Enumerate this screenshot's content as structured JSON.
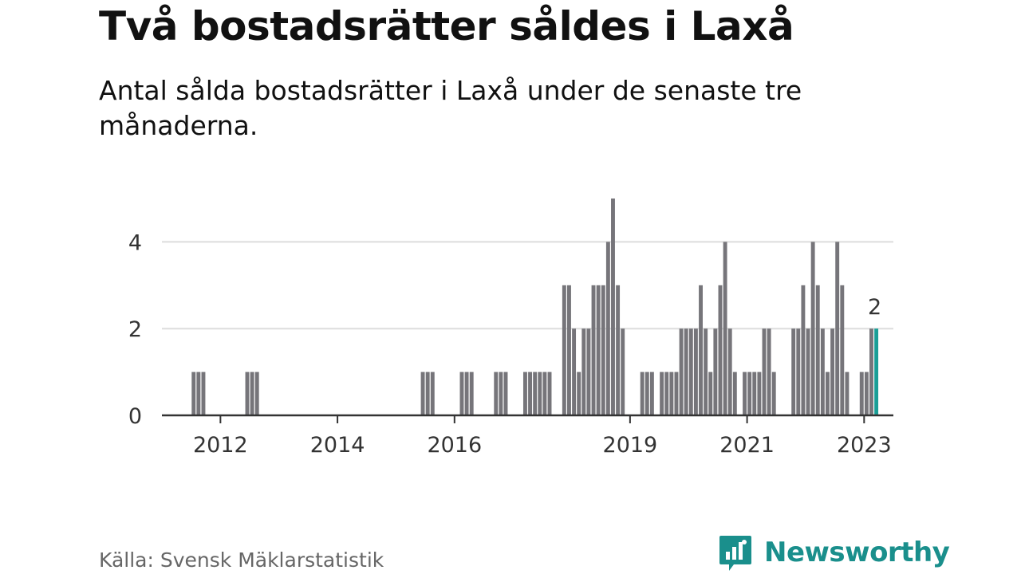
{
  "title": "Två bostadsrätter såldes i Laxå",
  "subtitle": "Antal sålda bostadsrätter i Laxå under de senaste tre månaderna.",
  "source": "Källa: Svensk Mäklarstatistik",
  "brand": {
    "name": "Newsworthy",
    "color": "#1a8f8c",
    "icon": "chart-bubble-icon"
  },
  "colors": {
    "bar": "#76757a",
    "highlight": "#1a9e96",
    "grid": "#dddddd",
    "baseline": "#333333"
  },
  "chart_data": {
    "type": "bar",
    "title": "Två bostadsrätter såldes i Laxå",
    "subtitle": "Antal sålda bostadsrätter i Laxå under de senaste tre månaderna.",
    "x_start": "2011-01",
    "x_end": "2023-06",
    "xticks": [
      {
        "label": "2012",
        "date": "2012-01"
      },
      {
        "label": "2014",
        "date": "2014-01"
      },
      {
        "label": "2016",
        "date": "2016-01"
      },
      {
        "label": "2019",
        "date": "2019-01"
      },
      {
        "label": "2021",
        "date": "2021-01"
      },
      {
        "label": "2023",
        "date": "2023-01"
      }
    ],
    "yticks": [
      0,
      2,
      4
    ],
    "ylim": [
      0,
      5
    ],
    "grid": true,
    "annotation": {
      "date": "2023-03",
      "text": "2"
    },
    "series": [
      {
        "points": [
          [
            "2011-07",
            1
          ],
          [
            "2011-08",
            1
          ],
          [
            "2011-09",
            1
          ],
          [
            "2012-06",
            1
          ],
          [
            "2012-07",
            1
          ],
          [
            "2012-08",
            1
          ],
          [
            "2015-06",
            1
          ],
          [
            "2015-07",
            1
          ],
          [
            "2015-08",
            1
          ],
          [
            "2016-02",
            1
          ],
          [
            "2016-03",
            1
          ],
          [
            "2016-04",
            1
          ],
          [
            "2016-09",
            1
          ],
          [
            "2016-10",
            1
          ],
          [
            "2016-11",
            1
          ],
          [
            "2017-03",
            1
          ],
          [
            "2017-04",
            1
          ],
          [
            "2017-05",
            1
          ],
          [
            "2017-06",
            1
          ],
          [
            "2017-07",
            1
          ],
          [
            "2017-08",
            1
          ],
          [
            "2017-11",
            3
          ],
          [
            "2017-12",
            3
          ],
          [
            "2018-01",
            2
          ],
          [
            "2018-02",
            1
          ],
          [
            "2018-03",
            2
          ],
          [
            "2018-04",
            2
          ],
          [
            "2018-05",
            3
          ],
          [
            "2018-06",
            3
          ],
          [
            "2018-07",
            3
          ],
          [
            "2018-08",
            4
          ],
          [
            "2018-09",
            5
          ],
          [
            "2018-10",
            3
          ],
          [
            "2018-11",
            2
          ],
          [
            "2019-03",
            1
          ],
          [
            "2019-04",
            1
          ],
          [
            "2019-05",
            1
          ],
          [
            "2019-07",
            1
          ],
          [
            "2019-08",
            1
          ],
          [
            "2019-09",
            1
          ],
          [
            "2019-10",
            1
          ],
          [
            "2019-11",
            2
          ],
          [
            "2019-12",
            2
          ],
          [
            "2020-01",
            2
          ],
          [
            "2020-02",
            2
          ],
          [
            "2020-03",
            3
          ],
          [
            "2020-04",
            2
          ],
          [
            "2020-05",
            1
          ],
          [
            "2020-06",
            2
          ],
          [
            "2020-07",
            3
          ],
          [
            "2020-08",
            4
          ],
          [
            "2020-09",
            2
          ],
          [
            "2020-10",
            1
          ],
          [
            "2020-12",
            1
          ],
          [
            "2021-01",
            1
          ],
          [
            "2021-02",
            1
          ],
          [
            "2021-03",
            1
          ],
          [
            "2021-04",
            2
          ],
          [
            "2021-05",
            2
          ],
          [
            "2021-06",
            1
          ],
          [
            "2021-10",
            2
          ],
          [
            "2021-11",
            2
          ],
          [
            "2021-12",
            3
          ],
          [
            "2022-01",
            2
          ],
          [
            "2022-02",
            4
          ],
          [
            "2022-03",
            3
          ],
          [
            "2022-04",
            2
          ],
          [
            "2022-05",
            1
          ],
          [
            "2022-06",
            2
          ],
          [
            "2022-07",
            4
          ],
          [
            "2022-08",
            3
          ],
          [
            "2022-09",
            1
          ],
          [
            "2022-12",
            1
          ],
          [
            "2023-01",
            1
          ],
          [
            "2023-02",
            2
          ],
          [
            "2023-03",
            2
          ]
        ],
        "highlight": "2023-03"
      }
    ]
  }
}
